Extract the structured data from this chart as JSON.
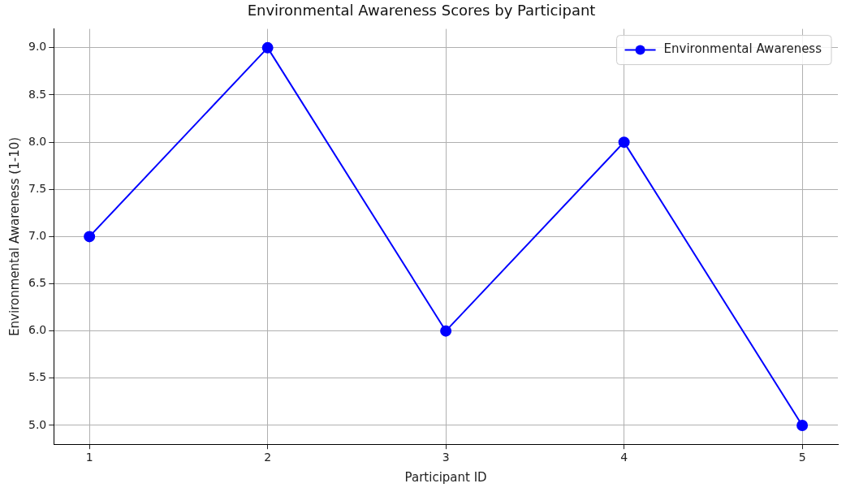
{
  "chart_data": {
    "type": "line",
    "title": "Environmental Awareness Scores by Participant",
    "xlabel": "Participant ID",
    "ylabel": "Environmental Awareness (1-10)",
    "x": [
      1,
      2,
      3,
      4,
      5
    ],
    "series": [
      {
        "name": "Environmental Awareness",
        "color": "#0000ff",
        "values": [
          7,
          9,
          6,
          8,
          5
        ]
      }
    ],
    "xlim": [
      0.8,
      5.2
    ],
    "xticks": [
      1,
      2,
      3,
      4,
      5
    ],
    "ylim": [
      4.8,
      9.2
    ],
    "yticks": [
      {
        "value": 5,
        "label": "5.0"
      },
      {
        "value": 5.5,
        "label": "5.5"
      },
      {
        "value": 6,
        "label": "6.0"
      },
      {
        "value": 6.5,
        "label": "6.5"
      },
      {
        "value": 7,
        "label": "7.0"
      },
      {
        "value": 7.5,
        "label": "7.5"
      },
      {
        "value": 8,
        "label": "8.0"
      },
      {
        "value": 8.5,
        "label": "8.5"
      },
      {
        "value": 9,
        "label": "9.0"
      }
    ],
    "grid": true,
    "legend": "top right",
    "marker": "circle",
    "line_style": "solid"
  }
}
